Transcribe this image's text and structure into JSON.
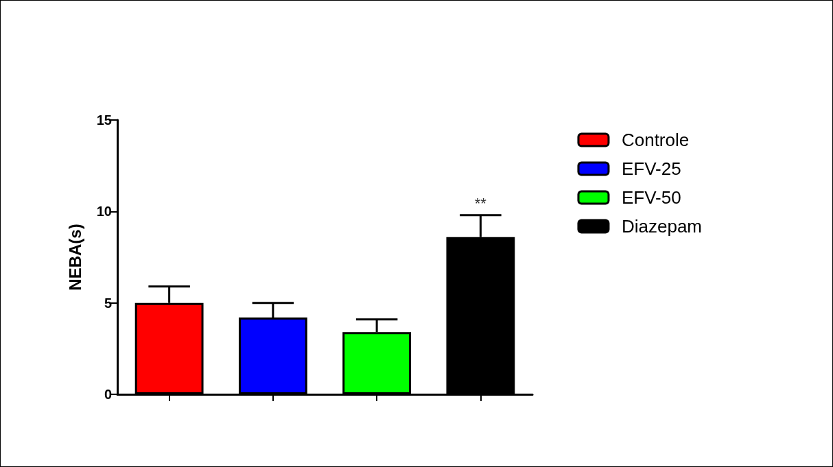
{
  "chart_data": {
    "type": "bar",
    "ylabel": "NEBA(s)",
    "categories": [
      null,
      null,
      null,
      null
    ],
    "series": [
      {
        "name": "Controle",
        "color": "#ff0000",
        "values": [
          5.0,
          null,
          null,
          null
        ],
        "errors": [
          [
            5.0,
            5.9
          ],
          null,
          null,
          null
        ]
      },
      {
        "name": "EFV-25",
        "color": "#0000ff",
        "values": [
          null,
          4.2,
          null,
          null
        ],
        "errors": [
          null,
          [
            4.2,
            5.0
          ],
          null,
          null
        ]
      },
      {
        "name": "EFV-50",
        "color": "#00ff00",
        "values": [
          null,
          null,
          3.4,
          null
        ],
        "errors": [
          null,
          null,
          [
            3.4,
            4.1
          ],
          null
        ]
      },
      {
        "name": "Diazepam",
        "color": "#000000",
        "values": [
          null,
          null,
          null,
          8.6
        ],
        "errors": [
          null,
          null,
          null,
          [
            8.6,
            9.8
          ]
        ],
        "value_labels": [
          null,
          null,
          null,
          "**"
        ]
      }
    ],
    "ylim": [
      0,
      15
    ],
    "yticks": [
      0,
      5,
      10,
      15
    ],
    "grid": false,
    "legend": "right"
  }
}
